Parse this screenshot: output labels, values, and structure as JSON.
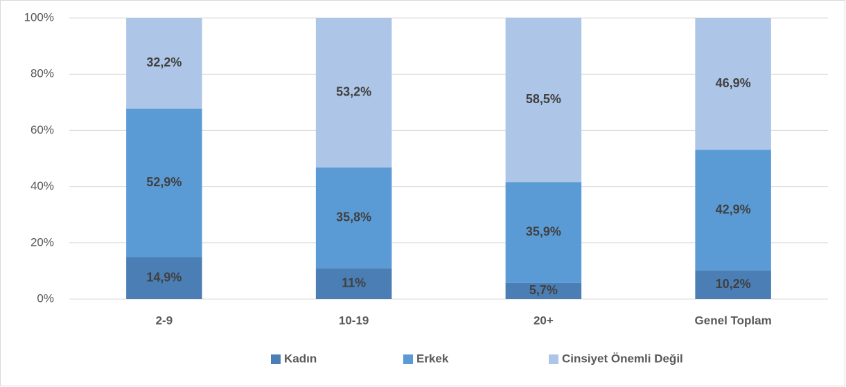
{
  "chart_data": {
    "type": "stacked_bar",
    "categories": [
      "2-9",
      "10-19",
      "20+",
      "Genel Toplam"
    ],
    "series": [
      {
        "name": "Kadın",
        "color": "#4a7eb5",
        "values": [
          14.9,
          11,
          5.7,
          10.2
        ],
        "value_labels": [
          "14,9%",
          "11%",
          "5,7%",
          "10,2%"
        ]
      },
      {
        "name": "Erkek",
        "color": "#5b9bd5",
        "values": [
          52.9,
          35.8,
          35.9,
          42.9
        ],
        "value_labels": [
          "52,9%",
          "35,8%",
          "35,9%",
          "42,9%"
        ]
      },
      {
        "name": "Cinsiyet Önemli Değil",
        "color": "#adc5e6",
        "values": [
          32.2,
          53.2,
          58.5,
          46.9
        ],
        "value_labels": [
          "32,2%",
          "53,2%",
          "58,5%",
          "46,9%"
        ]
      }
    ],
    "ylim": [
      0,
      100
    ],
    "yticks": [
      {
        "value": 0,
        "label": "0%"
      },
      {
        "value": 20,
        "label": "20%"
      },
      {
        "value": 40,
        "label": "40%"
      },
      {
        "value": 60,
        "label": "60%"
      },
      {
        "value": 80,
        "label": "80%"
      },
      {
        "value": 100,
        "label": "100%"
      }
    ],
    "grid": true,
    "legend": "bottom"
  }
}
